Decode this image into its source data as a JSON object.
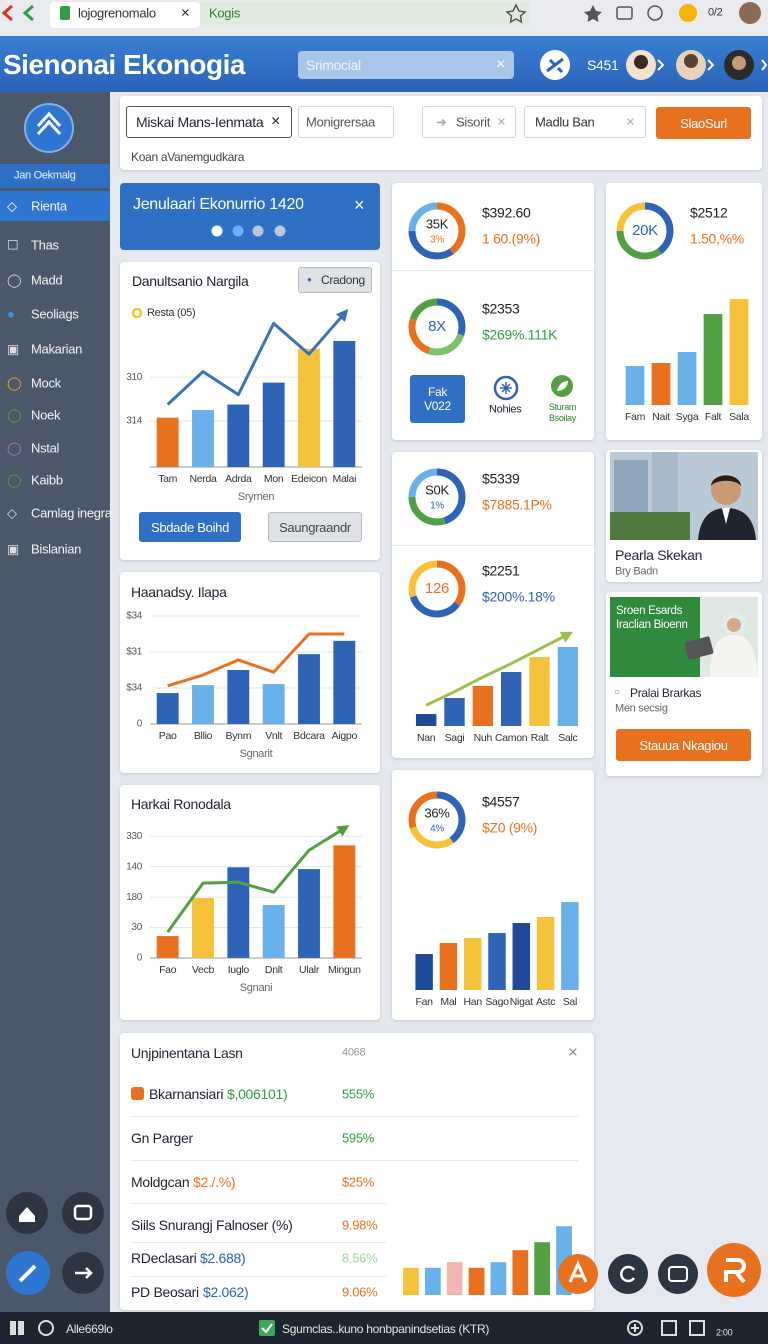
{
  "browser": {
    "tabs": [
      "lojogrenomalo",
      "Kogis"
    ],
    "counter": "0/2"
  },
  "header": {
    "title": "Sienonai Ekonogia",
    "search": "Srimocial",
    "badge": "S451"
  },
  "sidebar": {
    "section": "Jan Oekmalg",
    "items": [
      "Rienta",
      "Thas",
      "Madd",
      "Seoliags",
      "Makarian",
      "Mock",
      "Noek",
      "Nstal",
      "Kaibb",
      "Camlag inegra",
      "Bislanian"
    ]
  },
  "filters": {
    "chips": [
      "Miskai Mans-Ienmata",
      "Monigrersaa",
      "Sisorit",
      "Madlu Ban"
    ],
    "button": "SlaoSurl",
    "note": "Koan aVanemgudkara"
  },
  "banner": {
    "title": "Jenulaari Ekonurrio 1420"
  },
  "chart_data": [
    {
      "type": "bar",
      "title": "Danultsanio Nargila",
      "badge": "Cradong",
      "legend_color": "#f5c33b",
      "categories": [
        "Tam",
        "Nerda",
        "Adrda",
        "Mon",
        "Edeicon",
        "Malai"
      ],
      "x_label": "Sryrnen",
      "series": [
        {
          "name": "Resta (05)",
          "colors": [
            "#e8711f",
            "#6ab0ea",
            "#2f63b5",
            "#2f63b5",
            "#f5c33b",
            "#2f63b5"
          ],
          "values": [
            313.7,
            313.0,
            312.5,
            310.5,
            307.4,
            306.7
          ]
        },
        {
          "type": "line",
          "color": "#3a73b8",
          "arrow": true,
          "values": [
            312.5,
            309.5,
            311.6,
            305.1,
            307.9,
            304.2
          ]
        }
      ],
      "ylim": [
        318.2,
        303.6
      ],
      "yticks": [
        310,
        314
      ],
      "grid": true,
      "buttons": [
        "Sbdade Boihd",
        "Saungraandr"
      ]
    },
    {
      "type": "bar",
      "title": "Haanadsy. Ilapa",
      "categories": [
        "Pao",
        "Bllio",
        "Bynm",
        "Vnlt",
        "Bdcara",
        "Aigpo"
      ],
      "x_label": "Sgnarit",
      "series": [
        {
          "colors": [
            "#2f63b5",
            "#6ab0ea",
            "#2f63b5",
            "#6ab0ea",
            "#2f63b5",
            "#2f63b5"
          ],
          "values": [
            8.6,
            10.8,
            15,
            11.1,
            19.4,
            23.1
          ]
        },
        {
          "type": "line",
          "color": "#e8711f",
          "values": [
            10.6,
            13.6,
            17.8,
            14.4,
            25,
            25
          ]
        }
      ],
      "ylim": [
        0,
        35
      ],
      "yticks": [
        0,
        {
          "value": 10,
          "label": "$34"
        },
        {
          "value": 20,
          "label": "$31"
        },
        {
          "value": 30,
          "label": "$34"
        }
      ],
      "grid": true
    },
    {
      "type": "bar",
      "title": "Harkai Ronodala",
      "categories": [
        "Fao",
        "Vecb",
        "Iuglo",
        "Dnlt",
        "Ulalr",
        "Mingun"
      ],
      "x_label": "Sgnani",
      "series": [
        {
          "colors": [
            "#e8711f",
            "#f5c33b",
            "#2f63b5",
            "#6ab0ea",
            "#2f63b5",
            "#e8711f"
          ],
          "values": [
            7.2,
            19.7,
            29.8,
            17.4,
            29.2,
            37.0
          ]
        },
        {
          "type": "line",
          "color": "#52a043",
          "arrow": true,
          "values": [
            8.5,
            24.6,
            24.9,
            21.6,
            35.4,
            42.6
          ]
        }
      ],
      "ylim": [
        0,
        45
      ],
      "yticks": [
        0,
        {
          "value": 10,
          "label": "30"
        },
        {
          "value": 20,
          "label": "180"
        },
        {
          "value": 30,
          "label": "140"
        },
        {
          "value": 40,
          "label": "330"
        }
      ],
      "grid": true
    },
    {
      "type": "bar",
      "categories": [
        "Fam",
        "Nait",
        "Syga",
        "Falt",
        "Sala"
      ],
      "series": [
        {
          "colors": [
            "#6ab0ea",
            "#e8711f",
            "#6ab0ea",
            "#52a043",
            "#f5c33b"
          ],
          "values": [
            34.8,
            37.5,
            47.3,
            81.2,
            94.6
          ]
        }
      ],
      "ylim": [
        0,
        100
      ]
    },
    {
      "type": "bar",
      "categories": [
        "Nan",
        "Sagi",
        "Nuh",
        "Camon",
        "Ralt",
        "Salc"
      ],
      "series": [
        {
          "colors": [
            "#1f4a99",
            "#2f63b5",
            "#e8711f",
            "#2f63b5",
            "#f5c33b",
            "#6ab0ea"
          ],
          "values": [
            11.5,
            26.9,
            38.5,
            51.9,
            66.3,
            76.0
          ]
        },
        {
          "type": "line",
          "color": "#9bbf4a",
          "arrow": true,
          "values": [
            20,
            33,
            47,
            60,
            74,
            88
          ]
        }
      ],
      "ylim": [
        0,
        100
      ]
    },
    {
      "type": "bar",
      "categories": [
        "Fan",
        "Mal",
        "Han",
        "Sago",
        "Nigat",
        "Astc",
        "Sal"
      ],
      "series": [
        {
          "colors": [
            "#1f4a99",
            "#e8711f",
            "#f5c33b",
            "#2f63b5",
            "#1f4a99",
            "#f5c33b",
            "#6ab0ea"
          ],
          "values": [
            32.7,
            42.7,
            47.3,
            51.8,
            60.9,
            66.4,
            80
          ]
        }
      ],
      "ylim": [
        0,
        100
      ]
    },
    {
      "type": "bar",
      "series": [
        {
          "colors": [
            "#f5c33b",
            "#6ab0ea",
            "#f4b6b0",
            "#e8711f",
            "#6ab0ea",
            "#e8711f",
            "#52a043",
            "#6ab0ea"
          ],
          "values": [
            34,
            34,
            41,
            34,
            41,
            56,
            66,
            86
          ]
        }
      ],
      "ylim": [
        0,
        100
      ]
    }
  ],
  "kpis": [
    {
      "center": [
        "35K",
        "3%"
      ],
      "value": "$392.60",
      "change": "1 60.(9%)",
      "donut": [
        40,
        35,
        25
      ],
      "colors": [
        "#e8711f",
        "#2f63b5",
        "#6ab0ea"
      ]
    },
    {
      "center": [
        "8X"
      ],
      "value": "$2353",
      "change": "$269%.111K",
      "donut": [
        30,
        25,
        25,
        20
      ],
      "colors": [
        "#2f63b5",
        "#7cc26b",
        "#e8711f",
        "#52a043"
      ]
    },
    {
      "center": [
        "S0K",
        "1%"
      ],
      "value": "$5339",
      "change": "$7885.1P%",
      "donut": [
        45,
        30,
        25
      ],
      "colors": [
        "#2f63b5",
        "#52a043",
        "#6ab0ea"
      ]
    },
    {
      "center": [
        "126"
      ],
      "value": "$2251",
      "change": "$200%.18%",
      "donut": [
        35,
        35,
        30
      ],
      "colors": [
        "#e8711f",
        "#2f63b5",
        "#f5c33b"
      ]
    },
    {
      "center": [
        "36%",
        "4%"
      ],
      "value": "$4557",
      "change": "$Z0 (9%)",
      "donut": [
        40,
        30,
        30
      ],
      "colors": [
        "#2f63b5",
        "#f5c33b",
        "#e8711f"
      ]
    },
    {
      "center": [
        "20K"
      ],
      "value": "$2512",
      "change": "1.50,%%",
      "donut": [
        40,
        35,
        25
      ],
      "colors": [
        "#2f63b5",
        "#52a043",
        "#f5c33b"
      ]
    }
  ],
  "actions": [
    "Fak V022",
    "Nohies",
    "Sturam Bsoilay"
  ],
  "profile": {
    "name": "Pearla Skekan",
    "role": "Bry Badn"
  },
  "promo": {
    "image_text": "Sroen Esards Iraclian Bioenn",
    "label": "Pralai Brarkas",
    "note": "Men secsig",
    "button": "Stauua Nkagiou"
  },
  "table": {
    "title": "Unjpinentana Lasn",
    "count": "4068",
    "rows": [
      {
        "label": "Bkarnansiari",
        "amount": "$,006101)",
        "value": "555%"
      },
      {
        "label": "Gn Parger",
        "value": "595%"
      },
      {
        "label": "Moldgcan",
        "amount": "$2./.%)",
        "value": "$25%"
      },
      {
        "label": "Siils Snurangj Falnoser (%)",
        "value": "9.98%"
      },
      {
        "label": "RDeclasari",
        "amount": "$2.688)",
        "value": "8.56%"
      },
      {
        "label": "PD Beosari",
        "amount": "$2.062)",
        "value": "9.06%"
      }
    ]
  },
  "taskbar": {
    "left": "Alle669lo",
    "center": "Sgumclas..kuno honbpanindsetias (KTR)",
    "clock": "2:00"
  }
}
